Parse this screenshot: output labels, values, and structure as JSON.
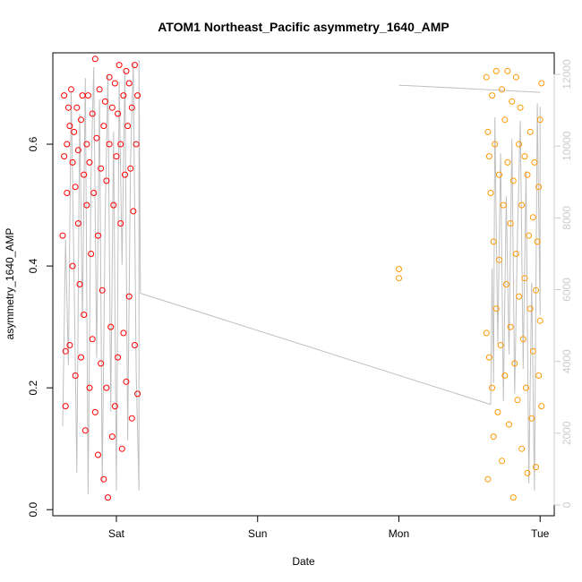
{
  "chart_data": {
    "type": "scatter",
    "title": "ATOM1 Northeast_Pacific asymmetry_1640_AMP",
    "xlabel": "Date",
    "ylabel": "asymmetry_1640_AMP",
    "x_axis": {
      "unit": "day",
      "ticks": [
        {
          "label": "Sat",
          "value": 1
        },
        {
          "label": "Sun",
          "value": 2
        },
        {
          "label": "Mon",
          "value": 3
        },
        {
          "label": "Tue",
          "value": 4
        }
      ],
      "range": [
        0.55,
        4.1
      ]
    },
    "y_axis": {
      "ticks": [
        0.0,
        0.2,
        0.4,
        0.6
      ],
      "tick_labels": [
        "0.0",
        "0.2",
        "0.4",
        "0.6"
      ],
      "range": [
        -0.01,
        0.75
      ]
    },
    "y2_axis": {
      "ticks": [
        0,
        2000,
        4000,
        6000,
        8000,
        10000,
        12000
      ],
      "tick_labels": [
        "0",
        "2000",
        "4000",
        "6000",
        "8000",
        "10000",
        "12000"
      ],
      "range": [
        -300,
        12600
      ],
      "color": "#cccccc"
    },
    "grid": false,
    "colors": {
      "series_a": "#ff0000",
      "series_b": "#ff9900",
      "line": "#c0c0c0"
    },
    "series": [
      {
        "color": "#ff0000",
        "marker": "open-circle",
        "points": [
          [
            0.62,
            0.45
          ],
          [
            0.63,
            0.68
          ],
          [
            0.63,
            0.58
          ],
          [
            0.64,
            0.26
          ],
          [
            0.64,
            0.17
          ],
          [
            0.65,
            0.6
          ],
          [
            0.65,
            0.52
          ],
          [
            0.66,
            0.66
          ],
          [
            0.67,
            0.27
          ],
          [
            0.67,
            0.63
          ],
          [
            0.68,
            0.69
          ],
          [
            0.69,
            0.57
          ],
          [
            0.69,
            0.4
          ],
          [
            0.7,
            0.62
          ],
          [
            0.71,
            0.22
          ],
          [
            0.71,
            0.53
          ],
          [
            0.72,
            0.66
          ],
          [
            0.73,
            0.47
          ],
          [
            0.73,
            0.59
          ],
          [
            0.74,
            0.37
          ],
          [
            0.75,
            0.64
          ],
          [
            0.75,
            0.25
          ],
          [
            0.76,
            0.68
          ],
          [
            0.77,
            0.55
          ],
          [
            0.77,
            0.32
          ],
          [
            0.78,
            0.13
          ],
          [
            0.79,
            0.6
          ],
          [
            0.79,
            0.5
          ],
          [
            0.8,
            0.68
          ],
          [
            0.81,
            0.2
          ],
          [
            0.81,
            0.57
          ],
          [
            0.82,
            0.42
          ],
          [
            0.83,
            0.65
          ],
          [
            0.83,
            0.28
          ],
          [
            0.84,
            0.52
          ],
          [
            0.85,
            0.74
          ],
          [
            0.85,
            0.16
          ],
          [
            0.86,
            0.61
          ],
          [
            0.87,
            0.09
          ],
          [
            0.87,
            0.45
          ],
          [
            0.88,
            0.69
          ],
          [
            0.89,
            0.24
          ],
          [
            0.89,
            0.56
          ],
          [
            0.9,
            0.36
          ],
          [
            0.91,
            0.63
          ],
          [
            0.91,
            0.05
          ],
          [
            0.92,
            0.67
          ],
          [
            0.93,
            0.2
          ],
          [
            0.93,
            0.54
          ],
          [
            0.94,
            0.02
          ],
          [
            0.95,
            0.71
          ],
          [
            0.95,
            0.6
          ],
          [
            0.96,
            0.3
          ],
          [
            0.97,
            0.66
          ],
          [
            0.97,
            0.12
          ],
          [
            0.98,
            0.5
          ],
          [
            0.99,
            0.7
          ],
          [
            0.99,
            0.17
          ],
          [
            1.0,
            0.58
          ],
          [
            1.01,
            0.65
          ],
          [
            1.01,
            0.25
          ],
          [
            1.02,
            0.73
          ],
          [
            1.03,
            0.47
          ],
          [
            1.03,
            0.6
          ],
          [
            1.04,
            0.1
          ],
          [
            1.05,
            0.68
          ],
          [
            1.05,
            0.29
          ],
          [
            1.06,
            0.55
          ],
          [
            1.07,
            0.72
          ],
          [
            1.07,
            0.21
          ],
          [
            1.08,
            0.63
          ],
          [
            1.09,
            0.35
          ],
          [
            1.09,
            0.7
          ],
          [
            1.1,
            0.56
          ],
          [
            1.11,
            0.15
          ],
          [
            1.11,
            0.66
          ],
          [
            1.12,
            0.49
          ],
          [
            1.13,
            0.73
          ],
          [
            1.13,
            0.27
          ],
          [
            1.14,
            0.6
          ],
          [
            1.15,
            0.19
          ],
          [
            1.15,
            0.68
          ]
        ]
      },
      {
        "color": "#ff9900",
        "marker": "open-circle",
        "points": [
          [
            3.0,
            0.395
          ],
          [
            3.0,
            0.38
          ],
          [
            3.62,
            0.71
          ],
          [
            3.62,
            0.29
          ],
          [
            3.63,
            0.62
          ],
          [
            3.63,
            0.05
          ],
          [
            3.64,
            0.58
          ],
          [
            3.64,
            0.25
          ],
          [
            3.65,
            0.52
          ],
          [
            3.66,
            0.2
          ],
          [
            3.66,
            0.68
          ],
          [
            3.67,
            0.44
          ],
          [
            3.67,
            0.12
          ],
          [
            3.68,
            0.6
          ],
          [
            3.69,
            0.33
          ],
          [
            3.69,
            0.72
          ],
          [
            3.7,
            0.16
          ],
          [
            3.71,
            0.55
          ],
          [
            3.71,
            0.41
          ],
          [
            3.72,
            0.27
          ],
          [
            3.73,
            0.69
          ],
          [
            3.73,
            0.08
          ],
          [
            3.74,
            0.5
          ],
          [
            3.75,
            0.64
          ],
          [
            3.75,
            0.22
          ],
          [
            3.76,
            0.37
          ],
          [
            3.77,
            0.72
          ],
          [
            3.77,
            0.57
          ],
          [
            3.78,
            0.14
          ],
          [
            3.79,
            0.47
          ],
          [
            3.79,
            0.3
          ],
          [
            3.8,
            0.67
          ],
          [
            3.81,
            0.02
          ],
          [
            3.81,
            0.54
          ],
          [
            3.82,
            0.24
          ],
          [
            3.83,
            0.71
          ],
          [
            3.83,
            0.42
          ],
          [
            3.84,
            0.18
          ],
          [
            3.85,
            0.6
          ],
          [
            3.85,
            0.35
          ],
          [
            3.86,
            0.66
          ],
          [
            3.87,
            0.1
          ],
          [
            3.87,
            0.5
          ],
          [
            3.88,
            0.28
          ],
          [
            3.89,
            0.58
          ],
          [
            3.89,
            0.38
          ],
          [
            3.9,
            0.2
          ],
          [
            3.91,
            0.55
          ],
          [
            3.91,
            0.06
          ],
          [
            3.92,
            0.45
          ],
          [
            3.93,
            0.33
          ],
          [
            3.93,
            0.62
          ],
          [
            3.94,
            0.15
          ],
          [
            3.95,
            0.48
          ],
          [
            3.95,
            0.26
          ],
          [
            3.96,
            0.57
          ],
          [
            3.97,
            0.36
          ],
          [
            3.97,
            0.07
          ],
          [
            3.98,
            0.44
          ],
          [
            3.99,
            0.22
          ],
          [
            3.99,
            0.53
          ],
          [
            4.0,
            0.64
          ],
          [
            4.0,
            0.31
          ],
          [
            4.01,
            0.7
          ],
          [
            4.01,
            0.17
          ]
        ]
      }
    ],
    "depth_line": {
      "axis": "y2",
      "points": [
        [
          0.62,
          2200
        ],
        [
          0.64,
          7400
        ],
        [
          0.66,
          3900
        ],
        [
          0.68,
          11500
        ],
        [
          0.7,
          6400
        ],
        [
          0.72,
          900
        ],
        [
          0.74,
          10900
        ],
        [
          0.76,
          5200
        ],
        [
          0.78,
          11900
        ],
        [
          0.8,
          300
        ],
        [
          0.82,
          9100
        ],
        [
          0.84,
          12200
        ],
        [
          0.86,
          4100
        ],
        [
          0.88,
          11300
        ],
        [
          0.9,
          600
        ],
        [
          0.92,
          7900
        ],
        [
          0.94,
          12000
        ],
        [
          0.96,
          2600
        ],
        [
          0.98,
          10400
        ],
        [
          1.0,
          400
        ],
        [
          1.02,
          11800
        ],
        [
          1.04,
          6700
        ],
        [
          1.06,
          12100
        ],
        [
          1.08,
          1800
        ],
        [
          1.1,
          9600
        ],
        [
          1.12,
          12300
        ],
        [
          1.14,
          3700
        ],
        [
          1.16,
          400
        ],
        [
          1.16,
          12400
        ],
        [
          1.17,
          5900
        ],
        [
          3.65,
          2800
        ],
        [
          3.66,
          6600
        ],
        [
          3.67,
          3400
        ],
        [
          3.68,
          10800
        ],
        [
          3.7,
          4500
        ],
        [
          3.72,
          9800
        ],
        [
          3.74,
          2900
        ],
        [
          3.76,
          8600
        ],
        [
          3.78,
          4200
        ],
        [
          3.8,
          10200
        ],
        [
          3.82,
          3100
        ],
        [
          3.84,
          7600
        ],
        [
          3.86,
          10700
        ],
        [
          3.88,
          3800
        ],
        [
          3.9,
          9300
        ],
        [
          3.92,
          600
        ],
        [
          3.94,
          6200
        ],
        [
          3.96,
          400
        ],
        [
          3.98,
          11200
        ],
        [
          4.0,
          5300
        ],
        [
          4.0,
          11100
        ]
      ],
      "connector": [
        [
          1.17,
          5900
        ],
        [
          3.65,
          2800
        ]
      ],
      "connector2": [
        [
          3.0,
          11700
        ],
        [
          4.0,
          11500
        ]
      ]
    }
  }
}
